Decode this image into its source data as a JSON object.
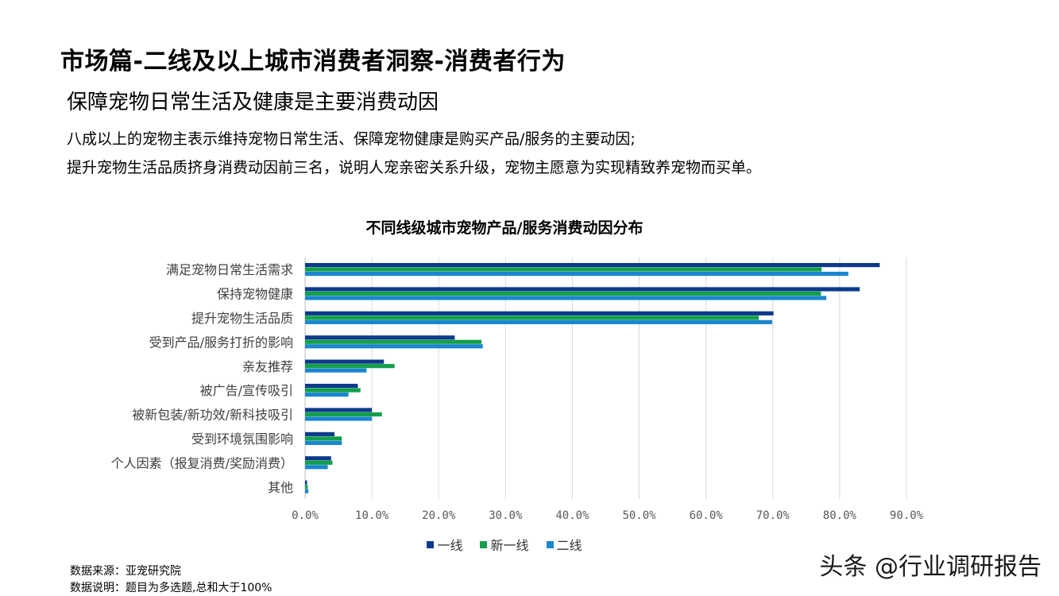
{
  "header": {
    "title": "市场篇-二线及以上城市消费者洞察-消费者行为",
    "subtitle": "保障宠物日常生活及健康是主要消费动因",
    "desc_lines": [
      "八成以上的宠物主表示维持宠物日常生活、保障宠物健康是购买产品/服务的主要动因;",
      "提升宠物生活品质挤身消费动因前三名，说明人宠亲密关系升级，宠物主愿意为实现精致养宠物而买单。"
    ]
  },
  "chart_data": {
    "type": "bar",
    "orientation": "horizontal",
    "title": "不同线级城市宠物产品/服务消费动因分布",
    "categories": [
      "满足宠物日常生活需求",
      "保持宠物健康",
      "提升宠物生活品质",
      "受到产品/服务打折的影响",
      "亲友推荐",
      "被广告/宣传吸引",
      "被新包装/新功效/新科技吸引",
      "受到环境氛围影响",
      "个人因素（报复消费/奖励消费）",
      "其他"
    ],
    "series": [
      {
        "name": "一线",
        "color": "#0d3a8c",
        "values": [
          86.0,
          83.0,
          70.1,
          22.4,
          11.8,
          7.9,
          10.0,
          4.4,
          3.9,
          0.3
        ]
      },
      {
        "name": "新一线",
        "color": "#12a04a",
        "values": [
          77.3,
          77.2,
          67.9,
          26.4,
          13.4,
          8.3,
          11.5,
          5.5,
          4.1,
          0.4
        ]
      },
      {
        "name": "二线",
        "color": "#1a87cf",
        "values": [
          81.3,
          78.0,
          69.9,
          26.6,
          9.2,
          6.5,
          10.0,
          5.5,
          3.4,
          0.5
        ]
      }
    ],
    "xlim": [
      0,
      90
    ],
    "xticks": [
      "0.0%",
      "10.0%",
      "20.0%",
      "30.0%",
      "40.0%",
      "50.0%",
      "60.0%",
      "70.0%",
      "80.0%",
      "90.0%"
    ],
    "grid": true,
    "legend_position": "bottom"
  },
  "footer": {
    "source": "数据来源：亚宠研究院",
    "note": "数据说明：题目为多选题,总和大于100%"
  },
  "watermark": "头条 @行业调研报告"
}
